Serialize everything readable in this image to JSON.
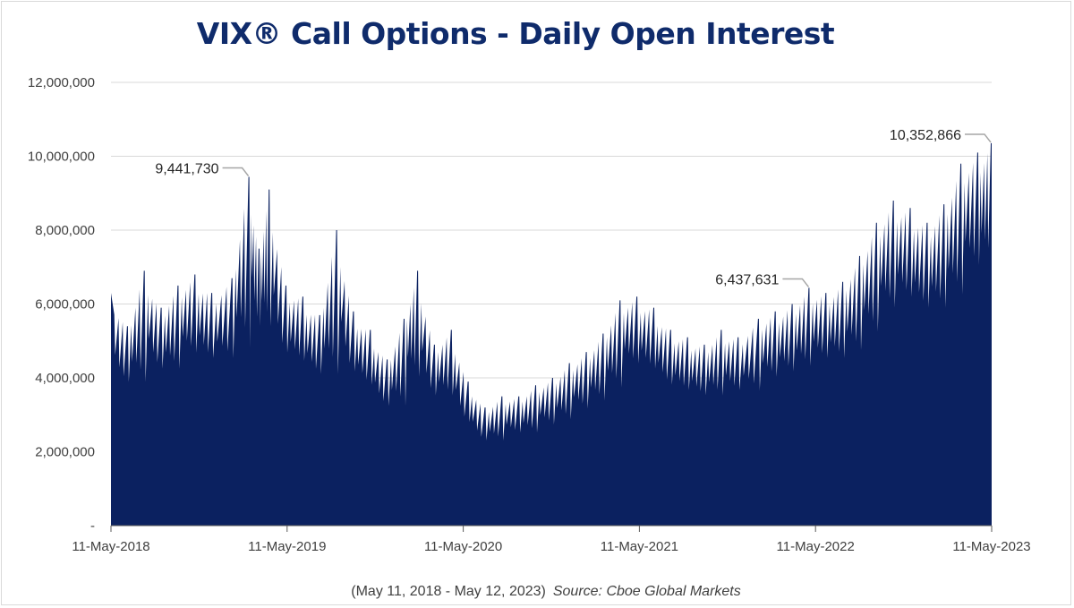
{
  "chart_data": {
    "type": "area",
    "title": "VIX® Call Options - Daily Open Interest",
    "footer_range": "(May 11, 2018 - May 12, 2023)",
    "footer_source": "Source: Cboe Global Markets",
    "xlabel": "",
    "ylabel": "",
    "x_range": [
      "2018-05-11",
      "2023-05-12"
    ],
    "ylim": [
      0,
      12000000
    ],
    "y_ticks": [
      0,
      2000000,
      4000000,
      6000000,
      8000000,
      10000000,
      12000000
    ],
    "y_tick_labels": [
      "-",
      "2,000,000",
      "4,000,000",
      "6,000,000",
      "8,000,000",
      "10,000,000",
      "12,000,000"
    ],
    "x_tick_labels": [
      "11-May-2018",
      "11-May-2019",
      "11-May-2020",
      "11-May-2021",
      "11-May-2022",
      "11-May-2023"
    ],
    "grid": true,
    "legend": "none",
    "color": "#0b2160",
    "series": [
      {
        "values": [
          [
            "2018-05-11",
            6300000
          ],
          [
            "2018-06-15",
            5400000
          ],
          [
            "2018-07-20",
            6900000
          ],
          [
            "2018-08-24",
            5900000
          ],
          [
            "2018-09-28",
            6500000
          ],
          [
            "2018-11-02",
            6800000
          ],
          [
            "2018-12-07",
            6300000
          ],
          [
            "2019-01-18",
            6700000
          ],
          [
            "2019-02-22",
            9441730
          ],
          [
            "2019-03-15",
            7500000
          ],
          [
            "2019-04-05",
            9100000
          ],
          [
            "2019-05-10",
            6500000
          ],
          [
            "2019-06-14",
            6200000
          ],
          [
            "2019-07-19",
            5700000
          ],
          [
            "2019-08-23",
            8000000
          ],
          [
            "2019-09-27",
            5800000
          ],
          [
            "2019-11-01",
            5300000
          ],
          [
            "2019-12-06",
            4500000
          ],
          [
            "2020-01-10",
            5600000
          ],
          [
            "2020-02-07",
            6900000
          ],
          [
            "2020-03-13",
            4900000
          ],
          [
            "2020-04-17",
            5300000
          ],
          [
            "2020-05-22",
            3900000
          ],
          [
            "2020-06-26",
            3200000
          ],
          [
            "2020-07-31",
            3500000
          ],
          [
            "2020-09-04",
            3500000
          ],
          [
            "2020-10-09",
            3800000
          ],
          [
            "2020-11-13",
            4000000
          ],
          [
            "2020-12-18",
            4400000
          ],
          [
            "2021-01-22",
            4700000
          ],
          [
            "2021-02-26",
            5200000
          ],
          [
            "2021-04-02",
            6100000
          ],
          [
            "2021-05-07",
            6200000
          ],
          [
            "2021-06-11",
            5900000
          ],
          [
            "2021-07-16",
            5300000
          ],
          [
            "2021-08-20",
            5100000
          ],
          [
            "2021-09-24",
            4900000
          ],
          [
            "2021-10-29",
            5300000
          ],
          [
            "2021-12-03",
            5100000
          ],
          [
            "2022-01-14",
            5600000
          ],
          [
            "2022-02-18",
            5800000
          ],
          [
            "2022-03-25",
            6000000
          ],
          [
            "2022-04-29",
            6437631
          ],
          [
            "2022-06-03",
            6300000
          ],
          [
            "2022-07-08",
            6600000
          ],
          [
            "2022-08-12",
            7300000
          ],
          [
            "2022-09-16",
            8200000
          ],
          [
            "2022-10-21",
            8800000
          ],
          [
            "2022-11-25",
            8600000
          ],
          [
            "2022-12-30",
            8200000
          ],
          [
            "2023-02-03",
            8700000
          ],
          [
            "2023-03-10",
            9800000
          ],
          [
            "2023-04-14",
            10100000
          ],
          [
            "2023-05-12",
            10352866
          ]
        ]
      }
    ],
    "annotations": [
      {
        "date": "2019-02-22",
        "value": 9441730,
        "label": "9,441,730"
      },
      {
        "date": "2022-04-29",
        "value": 6437631,
        "label": "6,437,631"
      },
      {
        "date": "2023-05-12",
        "value": 10352866,
        "label": "10,352,866"
      }
    ]
  }
}
